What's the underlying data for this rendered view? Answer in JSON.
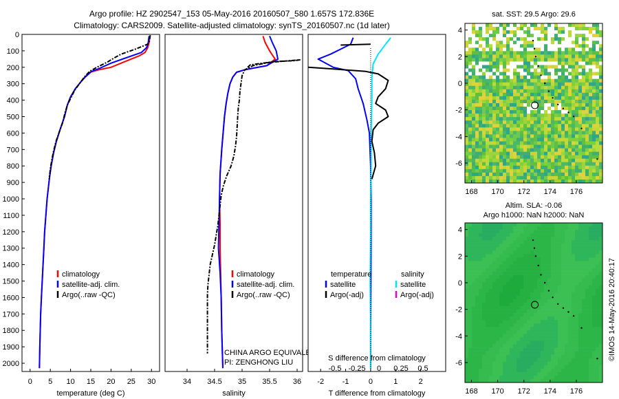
{
  "title_line1": "Argo profile: HZ 2902547_153 05-May-2016 20160507_580 1.657S 172.836E",
  "title_line2": "Climatology: CARS2009. Satellite-adjusted climatology: synTS_20160507.nc (1d later)",
  "colors": {
    "climatology": "#ff0000",
    "satellite": "#0000ff",
    "argo": "#000000",
    "cyan": "#00e5ff",
    "magenta": "#e000e0"
  },
  "chart_data": [
    {
      "type": "line",
      "panel": "temperature",
      "xlabel": "temperature (deg C)",
      "xlim": [
        -2,
        32
      ],
      "xticks": [
        0,
        5,
        10,
        15,
        20,
        25,
        30
      ],
      "ylim": [
        2050,
        0
      ],
      "yticks": [
        0,
        100,
        200,
        300,
        400,
        500,
        600,
        700,
        800,
        900,
        1000,
        1100,
        1200,
        1300,
        1400,
        1500,
        1600,
        1700,
        1800,
        1900,
        2000
      ],
      "legend": [
        "climatology",
        "satellite-adj. clim.",
        "Argo(..raw -QC)"
      ],
      "series": [
        {
          "name": "climatology",
          "color": "#ff0000",
          "points": [
            [
              29.6,
              10
            ],
            [
              29.4,
              50
            ],
            [
              29.1,
              80
            ],
            [
              28.4,
              110
            ],
            [
              27,
              130
            ],
            [
              24,
              160
            ],
            [
              20,
              200
            ],
            [
              17,
              215
            ],
            [
              14.8,
              230
            ],
            [
              13.5,
              260
            ],
            [
              12.5,
              290
            ],
            [
              11.2,
              330
            ],
            [
              10,
              380
            ],
            [
              9.2,
              430
            ],
            [
              8.5,
              500
            ],
            [
              7.4,
              580
            ],
            [
              6.5,
              650
            ],
            [
              5.8,
              720
            ],
            [
              5.2,
              800
            ],
            [
              4.8,
              870
            ],
            [
              4.2,
              1000
            ],
            [
              3.9,
              1100
            ],
            [
              3.6,
              1200
            ],
            [
              3.4,
              1300
            ],
            [
              3.2,
              1400
            ],
            [
              3,
              1500
            ],
            [
              2.8,
              1600
            ],
            [
              2.6,
              1700
            ],
            [
              2.5,
              1800
            ],
            [
              2.4,
              1900
            ],
            [
              2.3,
              2030
            ]
          ]
        },
        {
          "name": "satellite-adj. clim.",
          "color": "#0000ff",
          "points": [
            [
              29.4,
              10
            ],
            [
              29.2,
              50
            ],
            [
              28.8,
              80
            ],
            [
              27.5,
              110
            ],
            [
              24,
              140
            ],
            [
              20,
              175
            ],
            [
              17.3,
              205
            ],
            [
              15.2,
              225
            ],
            [
              13.6,
              260
            ],
            [
              12.5,
              290
            ],
            [
              11.2,
              330
            ],
            [
              10,
              380
            ],
            [
              9.2,
              430
            ],
            [
              8.5,
              500
            ],
            [
              7.4,
              580
            ],
            [
              6.5,
              650
            ],
            [
              5.8,
              720
            ],
            [
              5.2,
              800
            ],
            [
              4.8,
              870
            ],
            [
              4.2,
              1000
            ],
            [
              3.9,
              1100
            ],
            [
              3.6,
              1200
            ],
            [
              3.4,
              1300
            ],
            [
              3.2,
              1400
            ],
            [
              3,
              1500
            ],
            [
              2.8,
              1600
            ],
            [
              2.6,
              1700
            ],
            [
              2.5,
              1800
            ],
            [
              2.4,
              1900
            ],
            [
              2.3,
              2030
            ]
          ]
        },
        {
          "name": "Argo(..raw -QC)",
          "color": "#000000",
          "dashed": true,
          "points": [
            [
              29.7,
              5
            ],
            [
              29.5,
              40
            ],
            [
              29,
              60
            ],
            [
              26,
              90
            ],
            [
              22.5,
              120
            ],
            [
              21,
              140
            ],
            [
              19,
              170
            ],
            [
              16.5,
              200
            ],
            [
              14.7,
              225
            ],
            [
              13.4,
              260
            ],
            [
              12.2,
              300
            ],
            [
              11,
              340
            ],
            [
              10,
              390
            ],
            [
              9.2,
              430
            ],
            [
              8.6,
              480
            ],
            [
              8,
              540
            ],
            [
              7.4,
              580
            ],
            [
              6.4,
              650
            ],
            [
              5.7,
              720
            ],
            [
              5.1,
              800
            ],
            [
              4.7,
              880
            ]
          ]
        }
      ]
    },
    {
      "type": "line",
      "panel": "salinity",
      "xlabel": "salinity",
      "xlim": [
        33.6,
        36.1
      ],
      "xticks": [
        34,
        34.5,
        35,
        35.5,
        36
      ],
      "ylim": [
        2050,
        0
      ],
      "legend": [
        "climatology",
        "satellite-adj. clim.",
        "Argo(..raw -QC)"
      ],
      "annotation": [
        "CHINA ARGO EQUIVALENT",
        "PI: ZENGHONG LIU"
      ],
      "series": [
        {
          "name": "climatology",
          "color": "#ff0000",
          "points": [
            [
              35.38,
              10
            ],
            [
              35.42,
              50
            ],
            [
              35.5,
              100
            ],
            [
              35.6,
              150
            ],
            [
              35.45,
              190
            ],
            [
              35.05,
              215
            ],
            [
              34.9,
              230
            ],
            [
              34.83,
              260
            ],
            [
              34.78,
              300
            ],
            [
              34.74,
              360
            ],
            [
              34.71,
              420
            ],
            [
              34.68,
              500
            ],
            [
              34.66,
              580
            ],
            [
              34.63,
              700
            ],
            [
              34.6,
              850
            ],
            [
              34.59,
              1000
            ],
            [
              34.6,
              1150
            ],
            [
              34.6,
              1300
            ],
            [
              34.61,
              1450
            ],
            [
              34.62,
              1600
            ],
            [
              34.63,
              1800
            ],
            [
              34.65,
              2030
            ]
          ]
        },
        {
          "name": "satellite-adj. clim.",
          "color": "#0000ff",
          "points": [
            [
              35.5,
              10
            ],
            [
              35.55,
              50
            ],
            [
              35.62,
              100
            ],
            [
              35.65,
              150
            ],
            [
              35.45,
              190
            ],
            [
              35.05,
              215
            ],
            [
              34.9,
              230
            ],
            [
              34.83,
              260
            ],
            [
              34.78,
              300
            ],
            [
              34.74,
              360
            ],
            [
              34.71,
              420
            ],
            [
              34.68,
              500
            ],
            [
              34.66,
              580
            ],
            [
              34.63,
              700
            ],
            [
              34.6,
              850
            ],
            [
              34.59,
              1000
            ],
            [
              34.58,
              1150
            ],
            [
              34.57,
              1300
            ],
            [
              34.6,
              1450
            ],
            [
              34.62,
              1600
            ],
            [
              34.63,
              1800
            ],
            [
              34.65,
              2030
            ]
          ]
        },
        {
          "name": "Argo(..raw -QC)",
          "color": "#000000",
          "dashed": true,
          "points": [
            [
              35.1,
              200
            ],
            [
              35.15,
              185
            ],
            [
              35.6,
              165
            ],
            [
              35.95,
              160
            ],
            [
              36.05,
              155
            ],
            [
              35.5,
              170
            ],
            [
              35.2,
              190
            ],
            [
              35.05,
              215
            ],
            [
              35.0,
              250
            ],
            [
              34.98,
              300
            ],
            [
              34.96,
              350
            ],
            [
              34.95,
              400
            ],
            [
              34.93,
              450
            ],
            [
              34.92,
              500
            ],
            [
              34.91,
              560
            ],
            [
              34.9,
              620
            ],
            [
              34.88,
              680
            ],
            [
              34.85,
              740
            ],
            [
              34.8,
              800
            ],
            [
              34.72,
              860
            ],
            [
              34.66,
              920
            ],
            [
              34.62,
              980
            ],
            [
              34.6,
              1040
            ],
            [
              34.58,
              1100
            ],
            [
              34.56,
              1160
            ],
            [
              34.53,
              1220
            ],
            [
              34.5,
              1280
            ],
            [
              34.46,
              1340
            ],
            [
              34.42,
              1400
            ],
            [
              34.4,
              1460
            ],
            [
              34.38,
              1520
            ],
            [
              34.37,
              1580
            ],
            [
              34.37,
              1640
            ],
            [
              34.37,
              1700
            ],
            [
              34.37,
              1760
            ],
            [
              34.37,
              1820
            ],
            [
              34.37,
              1880
            ],
            [
              34.37,
              1940
            ]
          ]
        }
      ]
    },
    {
      "type": "line",
      "panel": "difference",
      "xlabel": "T difference from climatology",
      "xlabel_top": "S difference from climatology",
      "xlim": [
        -2.5,
        3
      ],
      "xticks": [
        -2,
        -1,
        0,
        1,
        2
      ],
      "xticks_top": [
        "-0.5",
        "-0.25",
        "0",
        "0.25",
        "0.5"
      ],
      "ylim": [
        2050,
        0
      ],
      "legend_headers": [
        "temperature",
        "salinity"
      ],
      "legend": [
        "satellite",
        "Argo(-adj)",
        "satellite",
        "Argo(-adj)"
      ],
      "series": [
        {
          "name": "temperature satellite",
          "color": "#0000ff",
          "points": [
            [
              -0.7,
              20
            ],
            [
              -0.8,
              60
            ],
            [
              -1.6,
              120
            ],
            [
              -2.1,
              150
            ],
            [
              -1.5,
              200
            ],
            [
              -0.9,
              220
            ],
            [
              -0.6,
              270
            ],
            [
              -0.5,
              330
            ],
            [
              -0.3,
              420
            ],
            [
              -0.15,
              520
            ],
            [
              -0.05,
              600
            ],
            [
              0,
              800
            ],
            [
              0.02,
              1000
            ],
            [
              0.02,
              1200
            ],
            [
              0.01,
              1500
            ],
            [
              0,
              1800
            ],
            [
              0,
              2030
            ]
          ]
        },
        {
          "name": "salinity satellite",
          "color": "#00e5ff",
          "points": [
            [
              0.8,
              20
            ],
            [
              0.6,
              60
            ],
            [
              0.3,
              120
            ],
            [
              0.1,
              180
            ],
            [
              0.05,
              260
            ],
            [
              0.05,
              400
            ],
            [
              0.02,
              600
            ],
            [
              0.02,
              800
            ],
            [
              0,
              1000
            ],
            [
              0,
              1200
            ],
            [
              -0.02,
              1500
            ],
            [
              0,
              1800
            ],
            [
              0,
              2030
            ]
          ]
        },
        {
          "name": "temperature Argo(-adj)",
          "color": "#000000",
          "points": [
            [
              -2.5,
              200
            ],
            [
              -1.5,
              210
            ],
            [
              -0.2,
              225
            ],
            [
              0.3,
              240
            ],
            [
              0.7,
              280
            ],
            [
              0.6,
              330
            ],
            [
              0.3,
              380
            ],
            [
              0.2,
              420
            ],
            [
              0.6,
              460
            ],
            [
              0.7,
              500
            ],
            [
              0.3,
              540
            ],
            [
              0.1,
              580
            ],
            [
              0.05,
              650
            ],
            [
              0.15,
              720
            ],
            [
              0.2,
              800
            ],
            [
              0.05,
              880
            ]
          ]
        },
        {
          "name": "salinity Argo(-adj)",
          "color": "#000000",
          "points": [
            [
              -1.2,
              65
            ],
            [
              0,
              60
            ]
          ]
        }
      ]
    },
    {
      "type": "heatmap",
      "panel": "sst_map",
      "title": "sat. SST: 29.5 Argo: 29.6",
      "xticks": [
        168,
        170,
        172,
        174,
        176
      ],
      "yticks": [
        4,
        2,
        0,
        -2,
        -4,
        -6
      ],
      "xlim": [
        167.5,
        178
      ],
      "ylim": [
        -7.5,
        4.5
      ],
      "float_position": [
        172.836,
        -1.657
      ]
    },
    {
      "type": "heatmap",
      "panel": "sla_map",
      "title_line1": "Altim. SLA: -0.06",
      "title_line2": "Argo h1000: NaN h2000: NaN",
      "xticks": [
        168,
        170,
        172,
        174,
        176
      ],
      "yticks": [
        4,
        2,
        0,
        -2,
        -4,
        -6
      ],
      "xlim": [
        167.5,
        178
      ],
      "ylim": [
        -7.5,
        4.5
      ],
      "float_position": [
        172.836,
        -1.657
      ]
    }
  ],
  "footer_vertical": "©IMOS 14-May-2016 20:40:17"
}
